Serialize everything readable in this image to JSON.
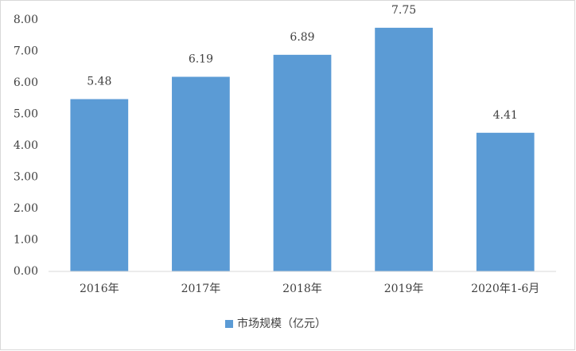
{
  "chart_data": {
    "type": "bar",
    "categories": [
      "2016年",
      "2017年",
      "2018年",
      "2019年",
      "2020年1-6月"
    ],
    "series": [
      {
        "name": "市场规模（亿元）",
        "color": "#5b9bd5",
        "values": [
          5.48,
          6.19,
          6.89,
          7.75,
          4.41
        ]
      }
    ],
    "ylim": [
      0,
      8
    ],
    "yticks": [
      {
        "value": 0,
        "label": "0.00"
      },
      {
        "value": 1,
        "label": "1.00"
      },
      {
        "value": 2,
        "label": "2.00"
      },
      {
        "value": 3,
        "label": "3.00"
      },
      {
        "value": 4,
        "label": "4.00"
      },
      {
        "value": 5,
        "label": "5.00"
      },
      {
        "value": 6,
        "label": "6.00"
      },
      {
        "value": 7,
        "label": "7.00"
      },
      {
        "value": 8,
        "label": "8.00"
      }
    ],
    "grid": false,
    "legend": "bottom"
  }
}
